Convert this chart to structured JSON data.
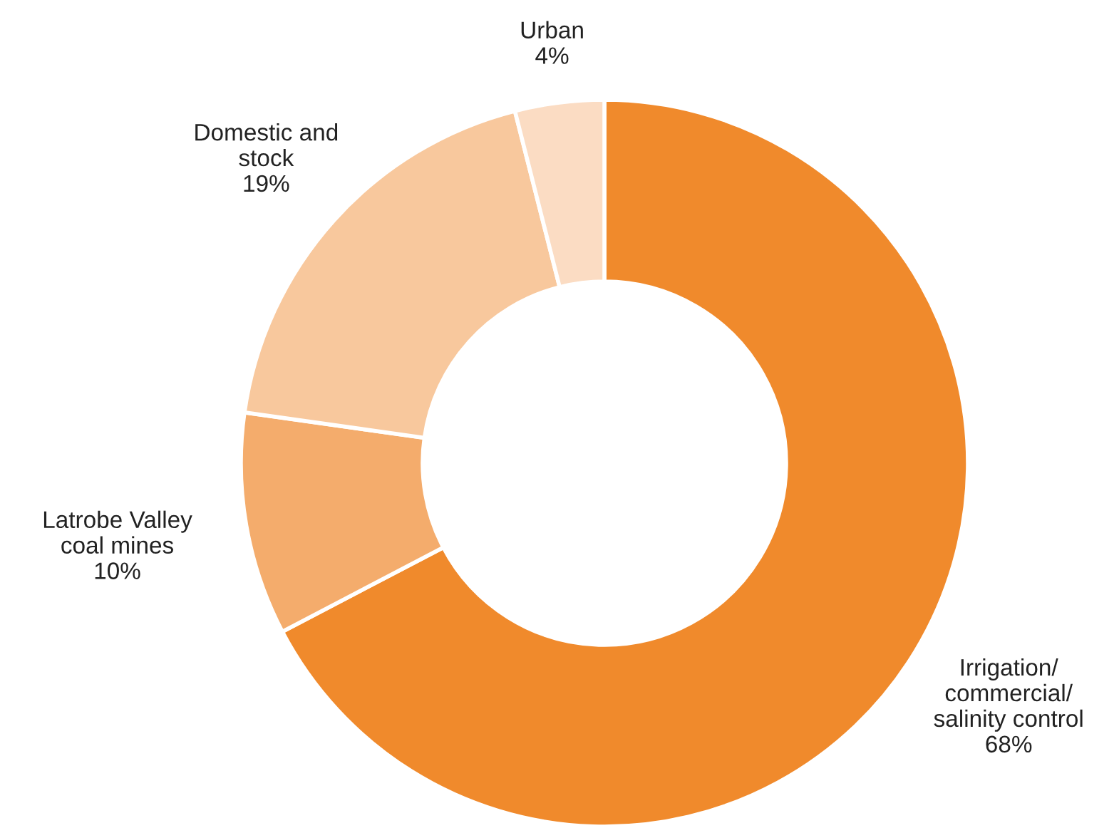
{
  "chart_data": {
    "type": "donut",
    "categories": [
      "Irrigation/\ncommercial/\nsalinity control",
      "Latrobe Valley\ncoal mines",
      "Domestic and\nstock",
      "Urban"
    ],
    "values": [
      68,
      10,
      19,
      4
    ],
    "colors": [
      "#f08a2c",
      "#f4ac6c",
      "#f8c89d",
      "#fbdcc3"
    ],
    "value_labels": [
      "68%",
      "10%",
      "19%",
      "4%"
    ]
  }
}
